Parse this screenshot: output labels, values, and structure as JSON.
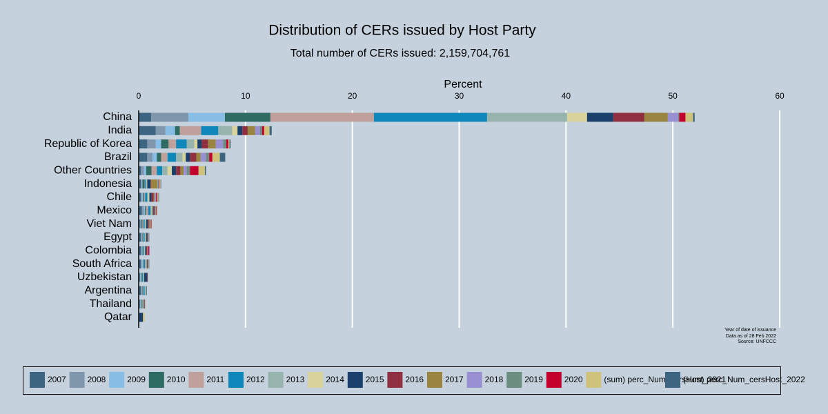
{
  "chart_data": {
    "type": "stacked-bar-horizontal",
    "title": "Distribution of CERs issued by Host Party",
    "subtitle": "Total number of CERs issued: 2,159,704,761",
    "x_label": "Percent",
    "notes": [
      "Year of date of issuance",
      "Data as of 28 Feb 2022",
      "Source: UNFCCC"
    ],
    "xlim": [
      0,
      60
    ],
    "xticks": [
      0,
      10,
      20,
      30,
      40,
      50,
      60
    ],
    "grid": true,
    "legend": "bottom",
    "categories": [
      "China",
      "India",
      "Republic of Korea",
      "Brazil",
      "Other Countries",
      "Indonesia",
      "Chile",
      "Mexico",
      "Viet Nam",
      "Egypt",
      "Colombia",
      "South Africa",
      "Uzbekistan",
      "Argentina",
      "Thailand",
      "Qatar"
    ],
    "series": [
      {
        "name": "2007",
        "color": "#3d6480",
        "values": [
          1.16,
          1.6,
          0.8,
          0.8,
          0.2,
          0.2,
          0.2,
          0.3,
          0.1,
          0.2,
          0.2,
          0.2,
          0.1,
          0.2,
          0.1,
          0
        ]
      },
      {
        "name": "2008",
        "color": "#7f96ad",
        "values": [
          3.49,
          0.9,
          0.8,
          0.5,
          0.3,
          0.1,
          0.1,
          0.2,
          0.1,
          0.1,
          0.05,
          0.1,
          0.05,
          0.1,
          0.05,
          0
        ]
      },
      {
        "name": "2009",
        "color": "#88bde6",
        "values": [
          3.42,
          0.9,
          0.5,
          0.4,
          0.2,
          0.05,
          0.1,
          0.1,
          0.05,
          0.05,
          0.05,
          0.1,
          0.05,
          0.05,
          0.05,
          0
        ]
      },
      {
        "name": "2010",
        "color": "#2e6b63",
        "values": [
          4.26,
          0.45,
          0.7,
          0.4,
          0.5,
          0.2,
          0.1,
          0.1,
          0.1,
          0.05,
          0.05,
          0.05,
          0.05,
          0.05,
          0.05,
          0
        ]
      },
      {
        "name": "2011",
        "color": "#c0a09a",
        "values": [
          9.69,
          2.0,
          0.7,
          0.6,
          0.5,
          0.05,
          0.1,
          0.2,
          0.1,
          0.05,
          0.05,
          0.05,
          0.05,
          0.05,
          0.05,
          0
        ]
      },
      {
        "name": "2012",
        "color": "#0e88bb",
        "values": [
          10.59,
          1.6,
          1.0,
          0.8,
          0.5,
          0.1,
          0.2,
          0.2,
          0.1,
          0.1,
          0.1,
          0.1,
          0.1,
          0.1,
          0.05,
          0
        ]
      },
      {
        "name": "2013",
        "color": "#96b3ad",
        "values": [
          7.49,
          1.3,
          0.7,
          0.6,
          0.5,
          0.05,
          0.1,
          0.1,
          0.1,
          0.1,
          0.05,
          0.1,
          0.05,
          0.1,
          0.05,
          0
        ]
      },
      {
        "name": "2014",
        "color": "#d9d39c",
        "values": [
          1.87,
          0.5,
          0.3,
          0.3,
          0.4,
          0.05,
          0.1,
          0.1,
          0.05,
          0.05,
          0.05,
          0.05,
          0.05,
          0.05,
          0.05,
          0.05
        ]
      },
      {
        "name": "2015",
        "color": "#1a416b",
        "values": [
          2.45,
          0.45,
          0.4,
          0.4,
          0.4,
          0.3,
          0.2,
          0.1,
          0.15,
          0.1,
          0.1,
          0.05,
          0.3,
          0.05,
          0.05,
          0.35
        ]
      },
      {
        "name": "2016",
        "color": "#8f2f3f",
        "values": [
          2.91,
          0.5,
          0.6,
          0.6,
          0.4,
          0.05,
          0.2,
          0.1,
          0.1,
          0.05,
          0.1,
          0.05,
          0.05,
          0,
          0.05,
          0
        ]
      },
      {
        "name": "2017",
        "color": "#9a8540",
        "values": [
          2.2,
          0.7,
          0.7,
          0.4,
          0.3,
          0.6,
          0.1,
          0.05,
          0.1,
          0.05,
          0.05,
          0.05,
          0,
          0,
          0.05,
          0
        ]
      },
      {
        "name": "2018",
        "color": "#9890d0",
        "values": [
          0.97,
          0.45,
          0.7,
          0.5,
          0.3,
          0.05,
          0.1,
          0.05,
          0.05,
          0.05,
          0.05,
          0.05,
          0,
          0,
          0,
          0
        ]
      },
      {
        "name": "2019",
        "color": "#6b8e80",
        "values": [
          0.1,
          0.2,
          0.3,
          0.3,
          0.3,
          0.1,
          0.05,
          0.05,
          0.05,
          0.05,
          0,
          0.05,
          0,
          0,
          0,
          0
        ]
      },
      {
        "name": "2020",
        "color": "#c4002f",
        "values": [
          0.58,
          0.2,
          0.2,
          0.3,
          0.8,
          0.05,
          0.1,
          0.05,
          0.05,
          0,
          0.1,
          0,
          0,
          0,
          0,
          0
        ]
      },
      {
        "name": "(sum) perc_Num_cersHost_2021",
        "color": "#cfc27a",
        "values": [
          0.71,
          0.5,
          0.1,
          0.7,
          0.6,
          0.1,
          0.1,
          0.05,
          0.05,
          0,
          0,
          0,
          0,
          0,
          0,
          0.15
        ]
      },
      {
        "name": "(sum) perc_Num_cersHost_2022",
        "color": "#3d6480",
        "values": [
          0.15,
          0.2,
          0.1,
          0.5,
          0.1,
          0.05,
          0.05,
          0,
          0,
          0,
          0,
          0,
          0,
          0,
          0,
          0
        ]
      }
    ]
  }
}
